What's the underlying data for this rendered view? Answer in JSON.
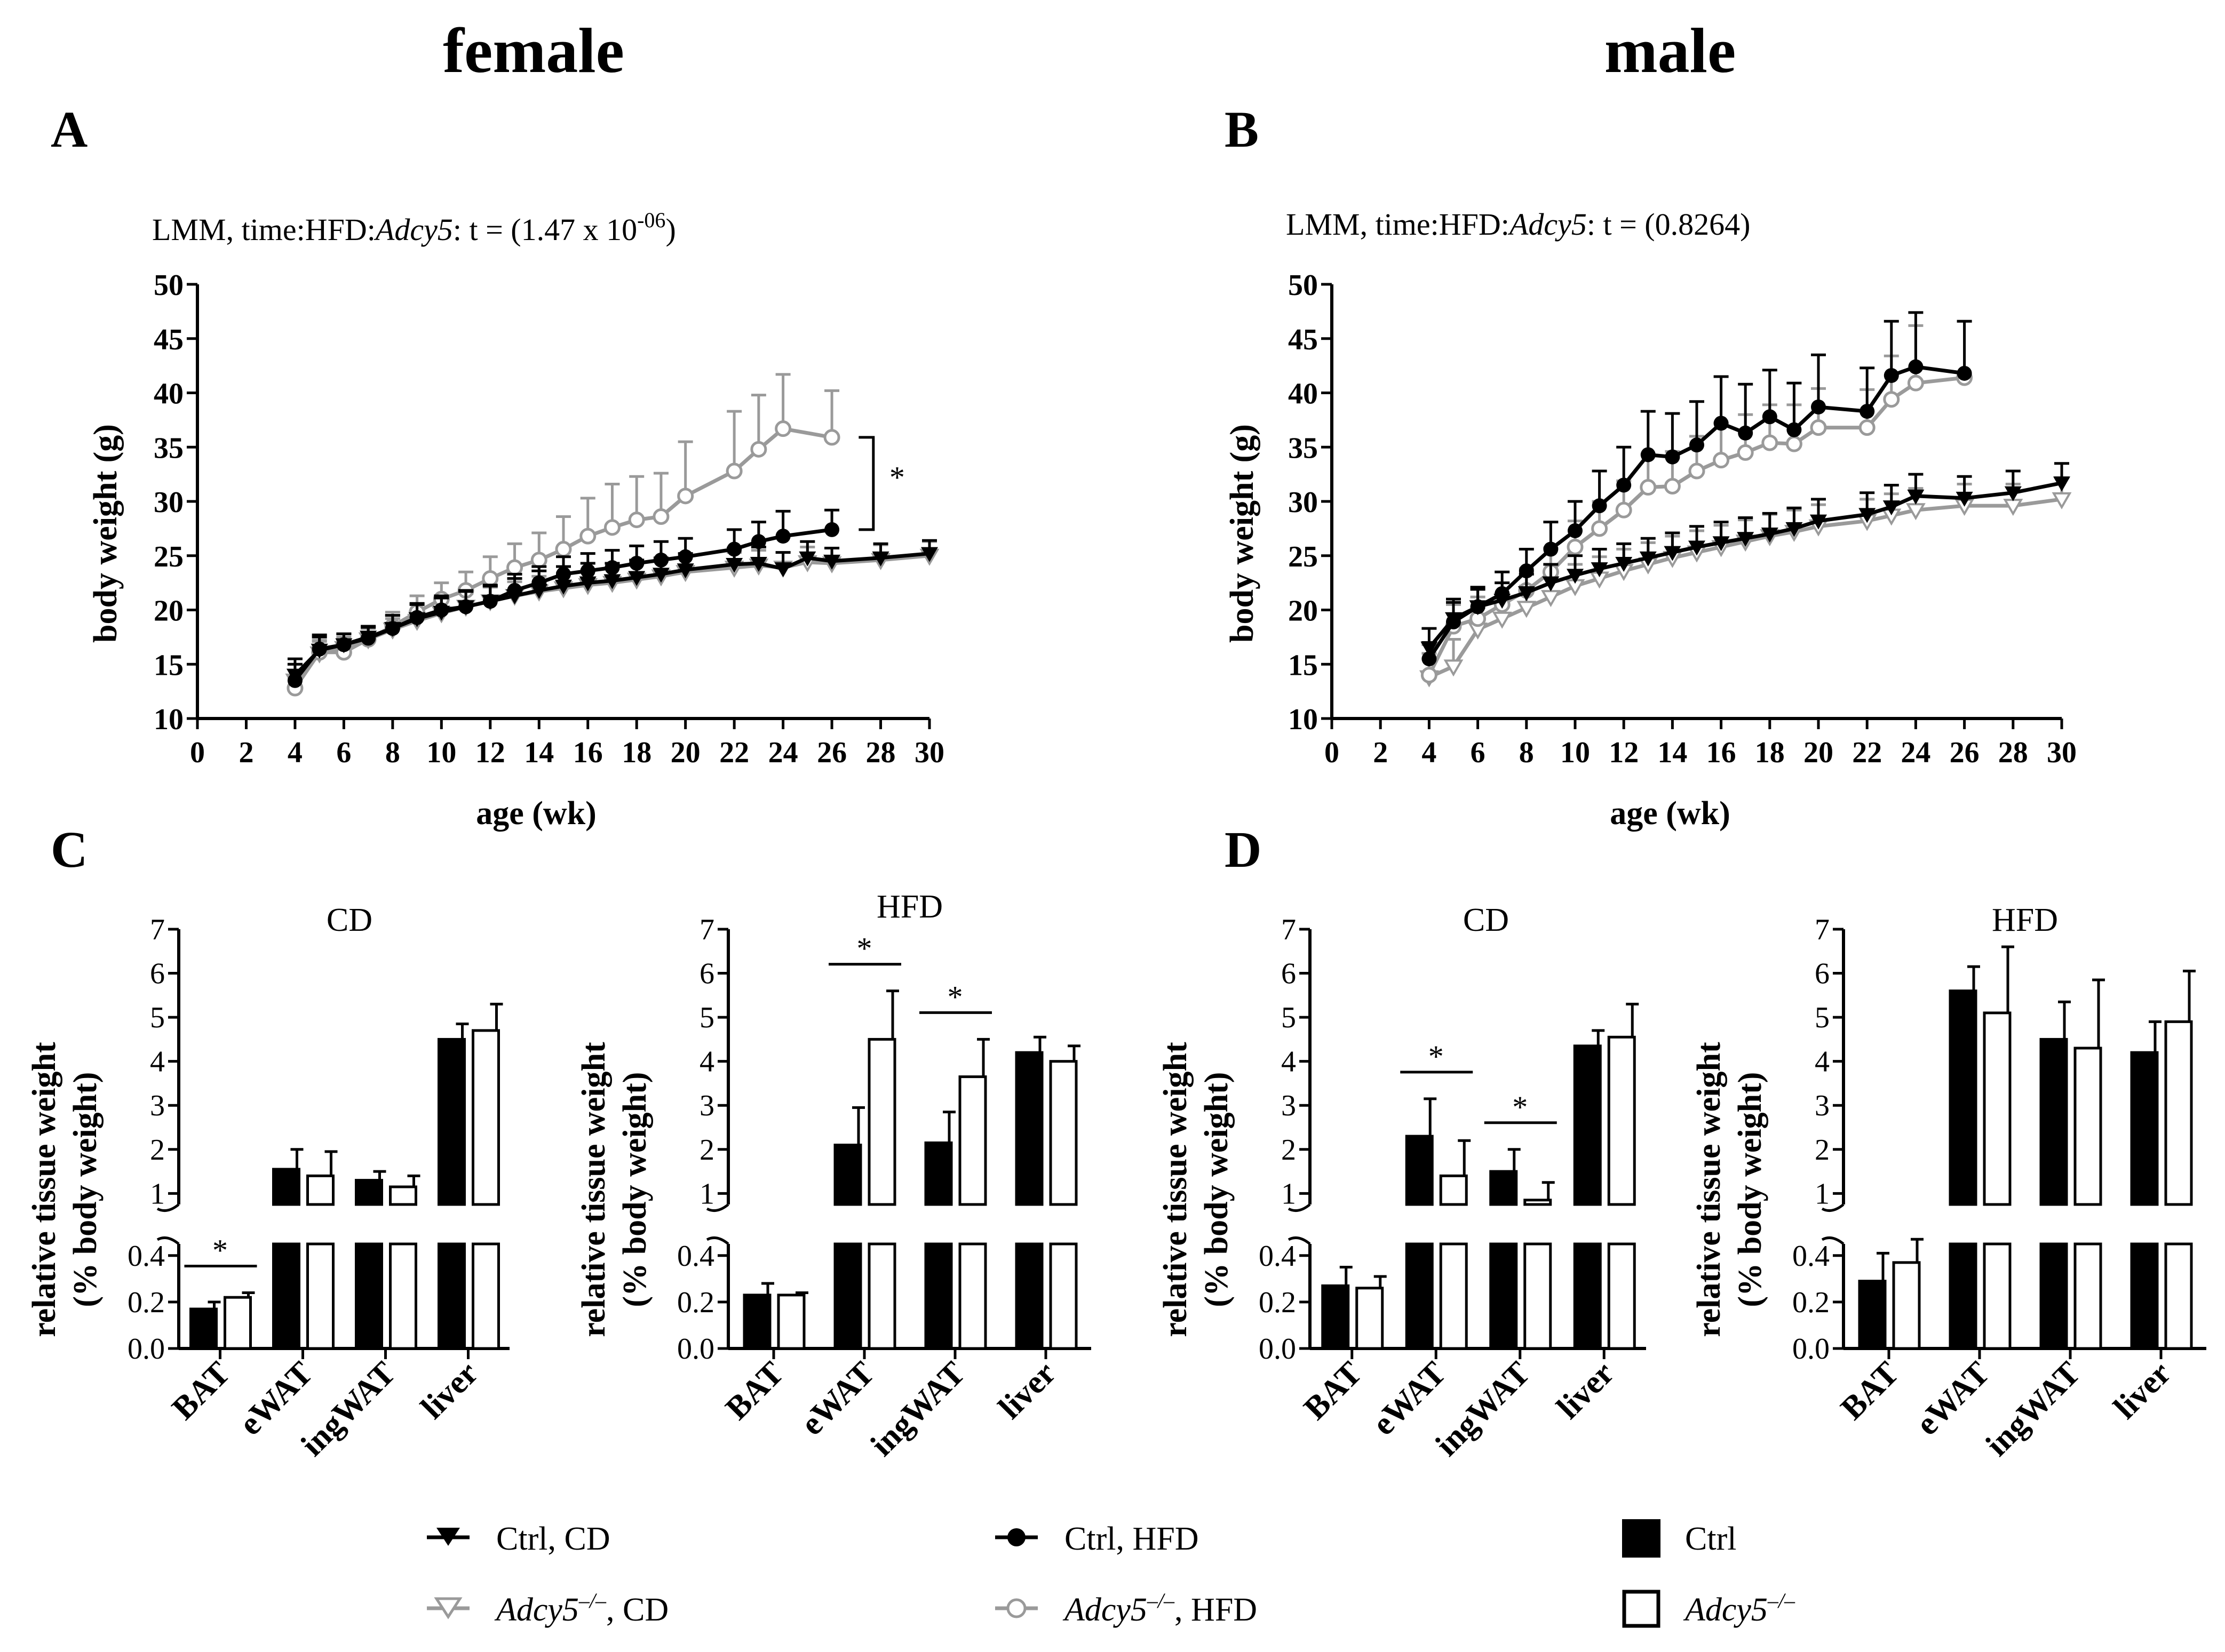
{
  "titles": {
    "female": "female",
    "male": "male"
  },
  "panel_letters": {
    "A": "A",
    "B": "B",
    "C": "C",
    "D": "D"
  },
  "legend": {
    "ctrl_cd": "Ctrl, CD",
    "ko_cd_gene": "Adcy5",
    "ko_cd_sup": "–/–",
    "ko_cd_suffix": ", CD",
    "ctrl_hfd": "Ctrl, HFD",
    "ko_hfd_gene": "Adcy5",
    "ko_hfd_sup": "–/–",
    "ko_hfd_suffix": ", HFD",
    "ctrl": "Ctrl",
    "ko_gene": "Adcy5",
    "ko_sup": "–/–"
  },
  "colors": {
    "ctrl": "#000000",
    "knockout": "#9a9a9a"
  },
  "chart_data": [
    {
      "id": "A",
      "type": "line",
      "annotation": {
        "prefix": "LMM, time:HFD:",
        "gene": "Adcy5",
        "mid": ": t = (1.47 x 10",
        "sup": "-06",
        "suffix": ")"
      },
      "xlabel": "age (wk)",
      "ylabel": "body weight (g)",
      "xlim": [
        0,
        30
      ],
      "ylim": [
        10,
        50
      ],
      "xticks": [
        "0",
        "2",
        "4",
        "6",
        "8",
        "10",
        "12",
        "14",
        "16",
        "18",
        "20",
        "22",
        "24",
        "26",
        "28",
        "30"
      ],
      "yticks": [
        "10",
        "15",
        "20",
        "25",
        "30",
        "35",
        "40",
        "45",
        "50"
      ],
      "significance": "*",
      "series": [
        {
          "name": "Ctrl, CD",
          "marker": "triangle-down",
          "color": "#000000",
          "x": [
            4,
            5,
            6,
            7,
            8,
            9,
            10,
            11,
            12,
            13,
            14,
            15,
            16,
            17,
            18,
            19,
            20,
            22,
            23,
            24,
            25,
            26,
            28,
            30
          ],
          "y": [
            14,
            16.3,
            16.8,
            17.5,
            18.3,
            19.2,
            19.8,
            20.3,
            20.8,
            21.3,
            21.8,
            22.2,
            22.5,
            22.7,
            23,
            23.3,
            23.7,
            24.2,
            24.3,
            23.8,
            24.8,
            24.5,
            24.8,
            25.2
          ],
          "err": [
            1.5,
            1.2,
            1.0,
            1.0,
            1.2,
            1.3,
            1.3,
            1.5,
            1.5,
            1.6,
            1.8,
            1.8,
            1.8,
            1.6,
            1.6,
            1.5,
            1.5,
            1.5,
            1.5,
            1.5,
            1.5,
            1.2,
            1.3,
            1.2
          ]
        },
        {
          "name": "Adcy5-/-, CD",
          "marker": "triangle-down-open",
          "color": "#9a9a9a",
          "x": [
            4,
            5,
            6,
            7,
            8,
            9,
            10,
            11,
            12,
            13,
            14,
            15,
            16,
            17,
            18,
            19,
            20,
            22,
            23,
            24,
            25,
            26,
            28,
            30
          ],
          "y": [
            13.5,
            16,
            16.5,
            17.3,
            18.2,
            19,
            19.7,
            20.3,
            20.8,
            21.3,
            21.7,
            22,
            22.3,
            22.5,
            22.8,
            23.1,
            23.5,
            23.9,
            24.1,
            23.9,
            24.4,
            24.3,
            24.6,
            25
          ],
          "err": [
            1.5,
            1.2,
            1.0,
            1.0,
            1.0,
            1.0,
            1.1,
            1.2,
            1.3,
            1.3,
            1.4,
            1.4,
            1.4,
            1.4,
            1.4,
            1.4,
            1.4,
            1.4,
            1.4,
            1.4,
            1.4,
            1.4,
            1.4,
            1.3
          ]
        },
        {
          "name": "Ctrl, HFD",
          "marker": "circle",
          "color": "#000000",
          "x": [
            4,
            5,
            6,
            7,
            8,
            9,
            10,
            11,
            12,
            13,
            14,
            15,
            16,
            17,
            18,
            19,
            20,
            22,
            23,
            24,
            26
          ],
          "y": [
            13.5,
            16.4,
            16.8,
            17.4,
            18.3,
            19.3,
            20,
            20.3,
            20.8,
            21.8,
            22.5,
            23.3,
            23.6,
            23.9,
            24.3,
            24.6,
            24.9,
            25.6,
            26.3,
            26.8,
            27.4
          ],
          "err": [
            1.5,
            1.3,
            1.0,
            1.0,
            1.2,
            1.3,
            1.3,
            1.4,
            1.4,
            1.5,
            1.5,
            1.6,
            1.6,
            1.6,
            1.6,
            1.7,
            1.7,
            1.8,
            1.8,
            2.3,
            1.8
          ]
        },
        {
          "name": "Adcy5-/-, HFD",
          "marker": "circle-open",
          "color": "#9a9a9a",
          "x": [
            4,
            5,
            6,
            7,
            8,
            9,
            10,
            11,
            12,
            13,
            14,
            15,
            16,
            17,
            18,
            19,
            20,
            22,
            23,
            24,
            26
          ],
          "y": [
            12.8,
            16.1,
            16.1,
            17.3,
            18.5,
            19.8,
            21,
            21.8,
            22.9,
            23.9,
            24.6,
            25.6,
            26.8,
            27.6,
            28.3,
            28.6,
            30.5,
            32.8,
            34.8,
            36.7,
            35.9
          ],
          "err": [
            1.0,
            1.0,
            1.0,
            1.2,
            1.3,
            1.5,
            1.5,
            1.7,
            2.0,
            2.2,
            2.5,
            3.0,
            3.5,
            4.0,
            4.0,
            4.0,
            5.0,
            5.5,
            5.0,
            5.0,
            4.3
          ]
        }
      ]
    },
    {
      "id": "B",
      "type": "line",
      "annotation": {
        "prefix": "LMM, time:HFD:",
        "gene": "Adcy5",
        "mid": ": t = (0.8264)",
        "sup": "",
        "suffix": ""
      },
      "xlabel": "age (wk)",
      "ylabel": "body weight (g)",
      "xlim": [
        0,
        30
      ],
      "ylim": [
        10,
        50
      ],
      "xticks": [
        "0",
        "2",
        "4",
        "6",
        "8",
        "10",
        "12",
        "14",
        "16",
        "18",
        "20",
        "22",
        "24",
        "26",
        "28",
        "30"
      ],
      "yticks": [
        "10",
        "15",
        "20",
        "25",
        "30",
        "35",
        "40",
        "45",
        "50"
      ],
      "series": [
        {
          "name": "Ctrl, CD",
          "marker": "triangle-down",
          "color": "#000000",
          "x": [
            4,
            5,
            6,
            7,
            8,
            9,
            10,
            11,
            12,
            13,
            14,
            15,
            16,
            17,
            18,
            19,
            20,
            22,
            23,
            24,
            26,
            28,
            30
          ],
          "y": [
            16.5,
            19.2,
            20.3,
            20.9,
            21.6,
            22.5,
            23.2,
            23.8,
            24.3,
            24.8,
            25.3,
            25.8,
            26.2,
            26.6,
            27,
            27.5,
            28.2,
            28.8,
            29.5,
            30.5,
            30.3,
            30.8,
            31.7
          ],
          "err": [
            1.8,
            1.8,
            1.6,
            1.6,
            1.7,
            1.7,
            1.8,
            1.8,
            1.8,
            1.8,
            1.8,
            1.9,
            1.9,
            1.9,
            1.9,
            1.9,
            2.0,
            2.0,
            2.0,
            2.0,
            2.0,
            2.0,
            1.8
          ]
        },
        {
          "name": "Adcy5-/-, CD",
          "marker": "triangle-down-open",
          "color": "#9a9a9a",
          "x": [
            4,
            5,
            6,
            7,
            8,
            9,
            10,
            11,
            12,
            13,
            14,
            15,
            16,
            17,
            18,
            19,
            20,
            22,
            23,
            24,
            26,
            28,
            30
          ],
          "y": [
            13.8,
            14.8,
            18.2,
            19.2,
            20.2,
            21.2,
            22.2,
            22.9,
            23.6,
            24.2,
            24.8,
            25.3,
            25.8,
            26.3,
            26.8,
            27.2,
            27.7,
            28.2,
            28.7,
            29.2,
            29.6,
            29.6,
            30.2
          ],
          "err": [
            3.0,
            2.5,
            2.0,
            2.0,
            2.0,
            2.0,
            2.0,
            2.0,
            2.0,
            2.0,
            2.0,
            2.0,
            2.0,
            2.0,
            2.0,
            2.0,
            2.0,
            2.0,
            2.0,
            2.0,
            2.0,
            2.0,
            2.0
          ]
        },
        {
          "name": "Ctrl, HFD",
          "marker": "circle",
          "color": "#000000",
          "x": [
            4,
            5,
            6,
            7,
            8,
            9,
            10,
            11,
            12,
            13,
            14,
            15,
            16,
            17,
            18,
            19,
            20,
            22,
            23,
            24,
            26
          ],
          "y": [
            15.5,
            18.9,
            20.3,
            21.5,
            23.6,
            25.6,
            27.3,
            29.6,
            31.5,
            34.3,
            34.1,
            35.2,
            37.2,
            36.3,
            37.8,
            36.6,
            38.7,
            38.3,
            41.6,
            42.4,
            41.8
          ],
          "err": [
            1.5,
            1.8,
            1.8,
            2.0,
            2.0,
            2.5,
            2.7,
            3.2,
            3.5,
            4.0,
            4.0,
            4.0,
            4.3,
            4.5,
            4.3,
            4.3,
            4.8,
            4.0,
            5.0,
            5.0,
            4.8
          ]
        },
        {
          "name": "Adcy5-/-, HFD",
          "marker": "circle-open",
          "color": "#9a9a9a",
          "x": [
            4,
            5,
            6,
            7,
            8,
            9,
            10,
            11,
            12,
            13,
            14,
            15,
            16,
            17,
            18,
            19,
            20,
            22,
            23,
            24,
            26
          ],
          "y": [
            14,
            18.5,
            19.2,
            20.5,
            21.8,
            23.5,
            25.8,
            27.5,
            29.2,
            31.3,
            31.4,
            32.8,
            33.8,
            34.5,
            35.4,
            35.3,
            36.8,
            36.8,
            39.4,
            40.9,
            41.4
          ],
          "err": [
            2.0,
            2.0,
            2.0,
            2.0,
            2.0,
            2.2,
            2.4,
            2.5,
            2.7,
            3.0,
            3.2,
            3.2,
            3.4,
            3.5,
            3.5,
            3.6,
            3.6,
            3.5,
            4.0,
            5.3,
            5.2
          ]
        }
      ]
    },
    {
      "id": "C-CD",
      "type": "bar",
      "title": "CD",
      "ylabel_line1": "relative tissue weight",
      "ylabel_line2": "(% body weight)",
      "categories": [
        "BAT",
        "eWAT",
        "ingWAT",
        "liver"
      ],
      "yticks_lower": [
        "0.0",
        "0.2",
        "0.4"
      ],
      "yticks_upper": [
        "1",
        "2",
        "3",
        "4",
        "5",
        "6",
        "7"
      ],
      "series": [
        {
          "name": "Ctrl",
          "values": [
            0.17,
            1.55,
            1.3,
            4.5
          ],
          "err": [
            0.03,
            0.45,
            0.2,
            0.35
          ]
        },
        {
          "name": "Adcy5-/-",
          "values": [
            0.22,
            1.4,
            1.15,
            4.7
          ],
          "err": [
            0.02,
            0.55,
            0.25,
            0.6
          ]
        }
      ],
      "significance": [
        {
          "category": "BAT",
          "label": "*"
        }
      ]
    },
    {
      "id": "C-HFD",
      "type": "bar",
      "title": "HFD",
      "ylabel_line1": "relative tissue weight",
      "ylabel_line2": "(% body weight)",
      "categories": [
        "BAT",
        "eWAT",
        "ingWAT",
        "liver"
      ],
      "yticks_lower": [
        "0.0",
        "0.2",
        "0.4"
      ],
      "yticks_upper": [
        "1",
        "2",
        "3",
        "4",
        "5",
        "6",
        "7"
      ],
      "series": [
        {
          "name": "Ctrl",
          "values": [
            0.23,
            2.1,
            2.15,
            4.2
          ],
          "err": [
            0.05,
            0.85,
            0.7,
            0.35
          ]
        },
        {
          "name": "Adcy5-/-",
          "values": [
            0.23,
            4.5,
            3.65,
            4.0
          ],
          "err": [
            0.01,
            1.1,
            0.85,
            0.35
          ]
        }
      ],
      "significance": [
        {
          "category": "eWAT",
          "label": "*"
        },
        {
          "category": "ingWAT",
          "label": "*"
        }
      ]
    },
    {
      "id": "D-CD",
      "type": "bar",
      "title": "CD",
      "ylabel_line1": "relative tissue weight",
      "ylabel_line2": "(% body weight)",
      "categories": [
        "BAT",
        "eWAT",
        "ingWAT",
        "liver"
      ],
      "yticks_lower": [
        "0.0",
        "0.2",
        "0.4"
      ],
      "yticks_upper": [
        "1",
        "2",
        "3",
        "4",
        "5",
        "6",
        "7"
      ],
      "series": [
        {
          "name": "Ctrl",
          "values": [
            0.27,
            2.3,
            1.5,
            4.35
          ],
          "err": [
            0.08,
            0.85,
            0.5,
            0.35
          ]
        },
        {
          "name": "Adcy5-/-",
          "values": [
            0.26,
            1.4,
            0.85,
            4.55
          ],
          "err": [
            0.05,
            0.8,
            0.4,
            0.75
          ]
        }
      ],
      "significance": [
        {
          "category": "eWAT",
          "label": "*"
        },
        {
          "category": "ingWAT",
          "label": "*"
        }
      ]
    },
    {
      "id": "D-HFD",
      "type": "bar",
      "title": "HFD",
      "ylabel_line1": "relative tissue weight",
      "ylabel_line2": "(% body weight)",
      "categories": [
        "BAT",
        "eWAT",
        "ingWAT",
        "liver"
      ],
      "yticks_lower": [
        "0.0",
        "0.2",
        "0.4"
      ],
      "yticks_upper": [
        "1",
        "2",
        "3",
        "4",
        "5",
        "6",
        "7"
      ],
      "series": [
        {
          "name": "Ctrl",
          "values": [
            0.29,
            5.6,
            4.5,
            4.2
          ],
          "err": [
            0.12,
            0.55,
            0.85,
            0.7
          ]
        },
        {
          "name": "Adcy5-/-",
          "values": [
            0.37,
            5.1,
            4.3,
            4.9
          ],
          "err": [
            0.1,
            1.5,
            1.55,
            1.15
          ]
        }
      ],
      "significance": []
    }
  ]
}
